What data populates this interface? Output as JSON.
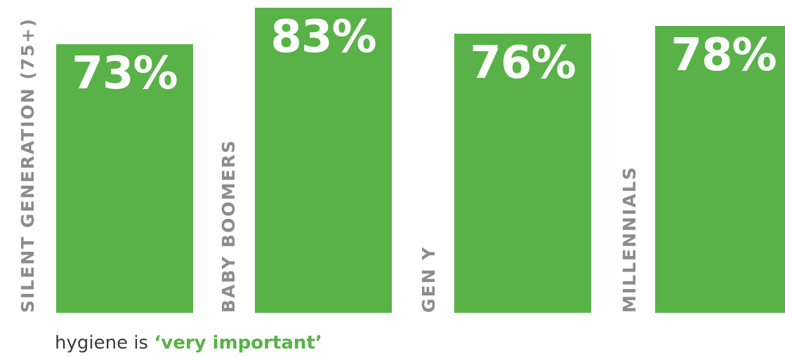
{
  "chart_data": {
    "type": "bar",
    "categories": [
      "SILENT GENERATION (75+)",
      "BABY BOOMERS",
      "GEN Y",
      "MILLENNIALS"
    ],
    "values": [
      73,
      83,
      76,
      78
    ],
    "value_labels": [
      "73%",
      "83%",
      "76%",
      "78%"
    ],
    "ylim": [
      0,
      100
    ],
    "grid": false,
    "legend": "none",
    "bar_color": "#58b247",
    "label_color": "#8c8c8c"
  },
  "caption": {
    "prefix": "hygiene is ",
    "highlight": "‘very important’"
  }
}
